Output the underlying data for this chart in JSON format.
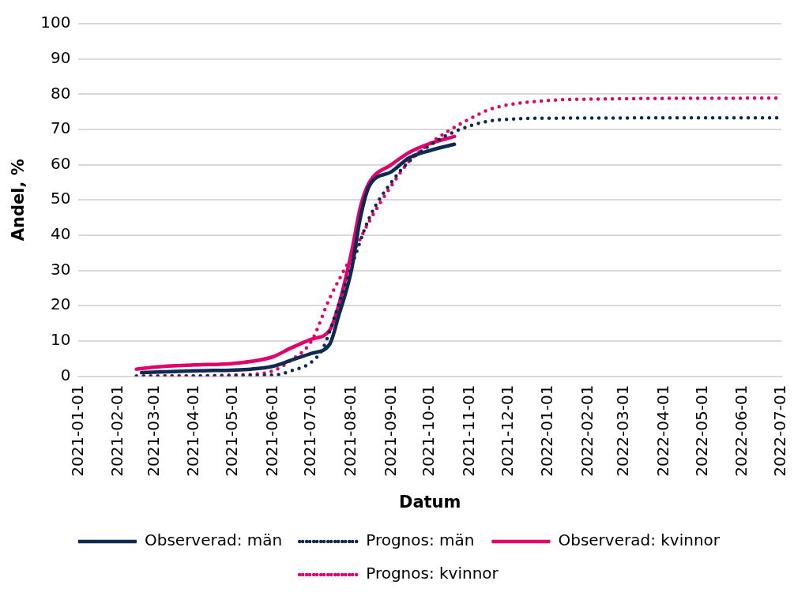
{
  "chart_data": {
    "type": "line",
    "xlabel": "Datum",
    "ylabel": "Andel, %",
    "xlim": [
      "2021-01-01",
      "2022-07-01"
    ],
    "xticks": [
      "2021-01-01",
      "2021-02-01",
      "2021-03-01",
      "2021-04-01",
      "2021-05-01",
      "2021-06-01",
      "2021-07-01",
      "2021-08-01",
      "2021-09-01",
      "2021-10-01",
      "2021-11-01",
      "2021-12-01",
      "2022-01-01",
      "2022-02-01",
      "2022-03-01",
      "2022-04-01",
      "2022-05-01",
      "2022-06-01",
      "2022-07-01"
    ],
    "ylim": [
      0,
      100
    ],
    "yticks": [
      0,
      10,
      20,
      30,
      40,
      50,
      60,
      70,
      80,
      90,
      100
    ],
    "grid": "y",
    "legend": "bottom",
    "marker": "none",
    "series": [
      {
        "name": "Observerad: män",
        "color": "#0d2b52",
        "line_style": "solid",
        "x": [
          "2021-02-19",
          "2021-04-01",
          "2021-05-15",
          "2021-06-01",
          "2021-06-15",
          "2021-07-01",
          "2021-07-15",
          "2021-07-22",
          "2021-08-01",
          "2021-08-08",
          "2021-08-15",
          "2021-09-01",
          "2021-09-15",
          "2021-10-01",
          "2021-10-20"
        ],
        "values": [
          1,
          1.5,
          2,
          2.8,
          4.5,
          6.5,
          9,
          17,
          30,
          45,
          54,
          58,
          62,
          64,
          65.8
        ]
      },
      {
        "name": "Prognos: män",
        "color": "#0d2b52",
        "line_style": "dotted",
        "x": [
          "2021-02-15",
          "2021-06-01",
          "2021-06-15",
          "2021-07-01",
          "2021-07-10",
          "2021-07-20",
          "2021-08-01",
          "2021-08-15",
          "2021-09-01",
          "2021-09-15",
          "2021-10-01",
          "2021-10-15",
          "2021-11-01",
          "2021-11-15",
          "2021-12-01",
          "2022-01-01",
          "2022-07-01"
        ],
        "values": [
          0,
          0.3,
          1.5,
          4,
          8,
          18,
          31,
          45,
          55,
          61,
          65.5,
          68.5,
          71,
          72.3,
          72.9,
          73.2,
          73.3
        ]
      },
      {
        "name": "Observerad: kvinnor",
        "color": "#e2006a",
        "line_style": "solid",
        "x": [
          "2021-02-15",
          "2021-03-01",
          "2021-04-01",
          "2021-05-01",
          "2021-06-01",
          "2021-06-15",
          "2021-07-01",
          "2021-07-15",
          "2021-07-22",
          "2021-08-01",
          "2021-08-08",
          "2021-08-15",
          "2021-09-01",
          "2021-09-15",
          "2021-10-01",
          "2021-10-20"
        ],
        "values": [
          2,
          2.6,
          3.2,
          3.6,
          5.5,
          8,
          10.5,
          13,
          20,
          35,
          48,
          55,
          60,
          63.5,
          66,
          68
        ]
      },
      {
        "name": "Prognos: kvinnor",
        "color": "#e2006a",
        "line_style": "dotted",
        "x": [
          "2021-02-15",
          "2021-05-15",
          "2021-06-01",
          "2021-06-15",
          "2021-07-01",
          "2021-07-15",
          "2021-08-01",
          "2021-08-15",
          "2021-09-01",
          "2021-09-15",
          "2021-10-01",
          "2021-10-15",
          "2021-11-01",
          "2021-11-15",
          "2021-12-01",
          "2022-01-01",
          "2022-02-01",
          "2022-07-01"
        ],
        "values": [
          0,
          0.5,
          1.5,
          4.5,
          10,
          22,
          34,
          44,
          54,
          61,
          66,
          69.5,
          73,
          75.5,
          77,
          78.2,
          78.6,
          78.9
        ]
      }
    ]
  }
}
